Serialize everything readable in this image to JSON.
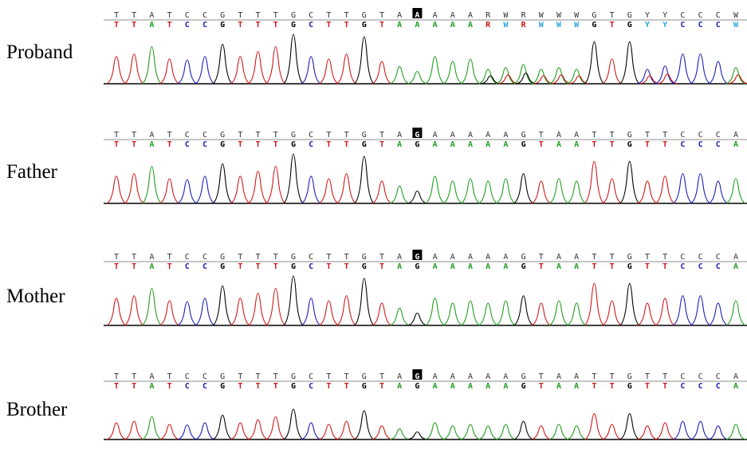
{
  "colors": {
    "A": "#1f9e1f",
    "C": "#1c1cb8",
    "G": "#000000",
    "T": "#d01818",
    "amb": "#2aa8e0"
  },
  "rows": [
    {
      "label": "Proband",
      "top": "TTATCCGTTTGCTTGTAAAAARWRWWWGTGYYCCCW",
      "bottom": "TTATCCGTTTGCTTGTAAAAARWRWWWGTGYYCCCW"
    },
    {
      "label": "Father",
      "top": "TTATCCGTTTGCTTGTAGAAAAAGTAATTGTTCCCA",
      "bottom": "TTATCCGTTTGCTTGTAGAAAAAGTAATTGTTCCCA"
    },
    {
      "label": "Mother",
      "top": "TTATCCGTTTGCTTGTAGAAAAAGTAATTGTTCCCA",
      "bottom": "TTATCCGTTTGCTTGTAGAAAAAGTAATTGTTCCCA"
    },
    {
      "label": "Brother",
      "top": "TTATCCGTTTGCTTGTAGAAAAAGTAATTGTTCCCA",
      "bottom": "TTATCCGTTTGCTTGTAGAAAAAGTAATTGTTCCCA"
    }
  ]
}
